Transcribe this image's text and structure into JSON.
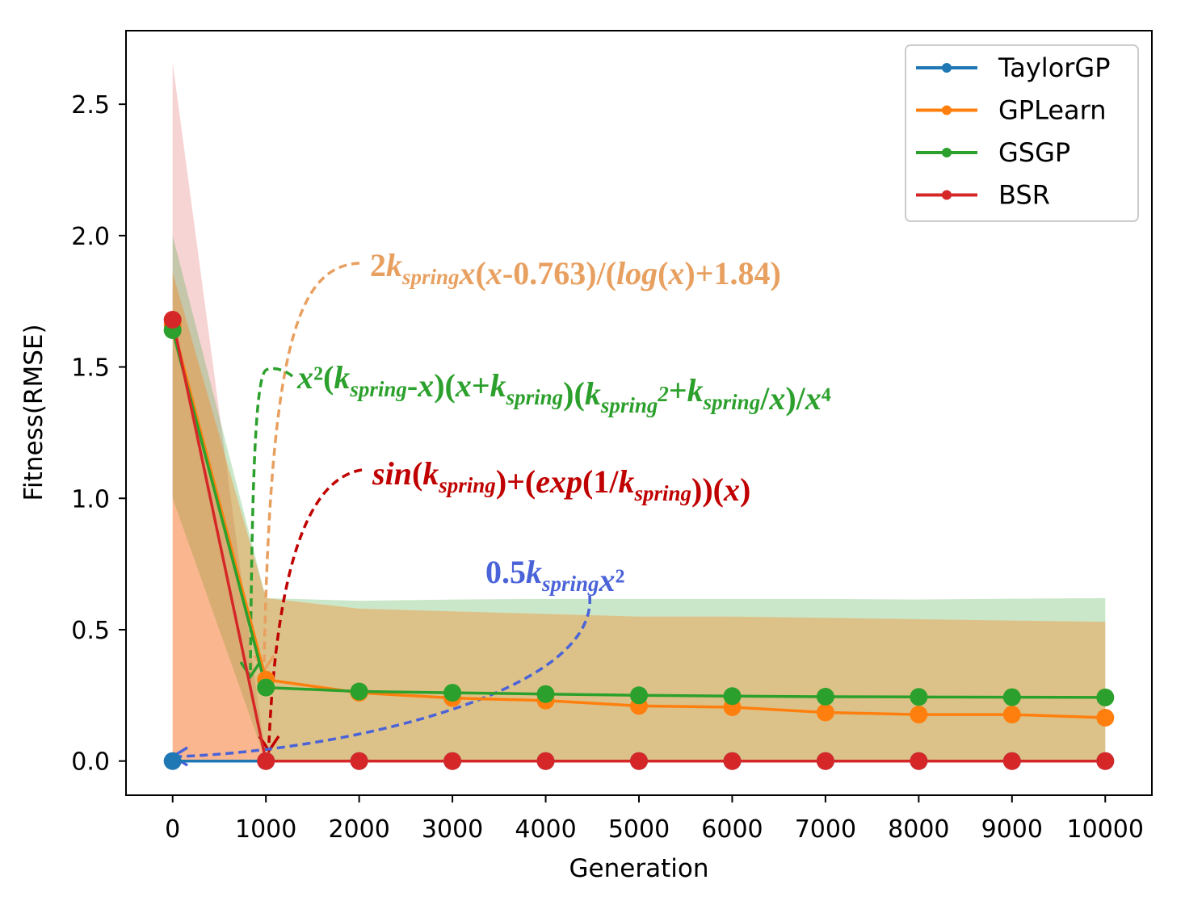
{
  "chart_data": {
    "type": "line",
    "xlabel": "Generation",
    "ylabel": "Fitness(RMSE)",
    "xlim": [
      -500,
      10500
    ],
    "ylim": [
      -0.13,
      2.78
    ],
    "x": [
      0,
      1000,
      2000,
      3000,
      4000,
      5000,
      6000,
      7000,
      8000,
      9000,
      10000
    ],
    "xticks": [
      0,
      1000,
      2000,
      3000,
      4000,
      5000,
      6000,
      7000,
      8000,
      9000,
      10000
    ],
    "xtick_labels": [
      "0",
      "1000",
      "2000",
      "3000",
      "4000",
      "5000",
      "6000",
      "7000",
      "8000",
      "9000",
      "10000"
    ],
    "yticks": [
      0.0,
      0.5,
      1.0,
      1.5,
      2.0,
      2.5
    ],
    "ytick_labels": [
      "0.0",
      "0.5",
      "1.0",
      "1.5",
      "2.0",
      "2.5"
    ],
    "legend_position": "top-right",
    "series": [
      {
        "name": "TaylorGP",
        "color": "#1f77b4",
        "values": [
          0,
          0,
          0,
          0,
          0,
          0,
          0,
          0,
          0,
          0,
          0
        ],
        "band_lower": null,
        "band_upper": null
      },
      {
        "name": "GPLearn",
        "color": "#ff7f0e",
        "values": [
          1.66,
          0.31,
          0.26,
          0.24,
          0.23,
          0.21,
          0.205,
          0.185,
          0.177,
          0.177,
          0.165
        ],
        "band_lower": [
          0.0,
          0.0,
          0.0,
          0.0,
          0.0,
          0.0,
          0.0,
          0.0,
          0.0,
          0.0,
          0.0
        ],
        "band_upper": [
          1.86,
          0.62,
          0.58,
          0.57,
          0.56,
          0.55,
          0.55,
          0.545,
          0.54,
          0.535,
          0.53
        ]
      },
      {
        "name": "GSGP",
        "color": "#2ca02c",
        "values": [
          1.64,
          0.28,
          0.265,
          0.26,
          0.255,
          0.25,
          0.247,
          0.245,
          0.244,
          0.243,
          0.242
        ],
        "band_lower": [
          1.0,
          0.0,
          0.0,
          0.0,
          0.0,
          0.0,
          0.0,
          0.0,
          0.0,
          0.0,
          0.0
        ],
        "band_upper": [
          2.0,
          0.62,
          0.61,
          0.615,
          0.617,
          0.617,
          0.617,
          0.617,
          0.615,
          0.618,
          0.62
        ]
      },
      {
        "name": "BSR",
        "color": "#d62728",
        "values": [
          1.68,
          0,
          0,
          0,
          0,
          0,
          0,
          0,
          0,
          0,
          0
        ],
        "band_lower": [
          0.0,
          0.0,
          0.0,
          0.0,
          0.0,
          0.0,
          0.0,
          0.0,
          0.0,
          0.0,
          0.0
        ],
        "band_upper": [
          2.66,
          0.0,
          0.0,
          0.0,
          0.0,
          0.0,
          0.0,
          0.0,
          0.0,
          0.0,
          0.0
        ]
      }
    ],
    "annotations": [
      {
        "series": "GPLearn",
        "color": "#e8a060",
        "parts": [
          [
            "b",
            "2"
          ],
          [
            "i",
            "k"
          ],
          [
            "sub",
            "spring"
          ],
          [
            "i",
            "x"
          ],
          [
            "b",
            "("
          ],
          [
            "i",
            "x"
          ],
          [
            "b",
            "-0.763)/("
          ],
          [
            "i",
            "log"
          ],
          [
            "b",
            "("
          ],
          [
            "i",
            "x"
          ],
          [
            "b",
            ")+1.84)"
          ]
        ]
      },
      {
        "series": "GSGP",
        "color": "#2ca02c",
        "parts": [
          [
            "i",
            "x"
          ],
          [
            "b",
            "²("
          ],
          [
            "i",
            "k"
          ],
          [
            "sub",
            "spring"
          ],
          [
            "b",
            "-"
          ],
          [
            "i",
            "x"
          ],
          [
            "b",
            ")("
          ],
          [
            "i",
            "x"
          ],
          [
            "b",
            "+"
          ],
          [
            "i",
            "k"
          ],
          [
            "sub",
            "spring"
          ],
          [
            "b",
            ")("
          ],
          [
            "i",
            "k"
          ],
          [
            "sub",
            "spring"
          ],
          [
            "sup",
            "2"
          ],
          [
            "b",
            "+"
          ],
          [
            "i",
            "k"
          ],
          [
            "sub",
            "spring"
          ],
          [
            "b",
            "/"
          ],
          [
            "i",
            "x"
          ],
          [
            "b",
            ")/"
          ],
          [
            "i",
            "x"
          ],
          [
            "b",
            "⁴"
          ]
        ]
      },
      {
        "series": "BSR",
        "color": "#c00000",
        "parts": [
          [
            "i",
            "sin"
          ],
          [
            "b",
            "("
          ],
          [
            "i",
            "k"
          ],
          [
            "sub",
            "spring"
          ],
          [
            "b",
            ")+("
          ],
          [
            "i",
            "exp"
          ],
          [
            "b",
            "(1/"
          ],
          [
            "i",
            "k"
          ],
          [
            "sub",
            "spring"
          ],
          [
            "b",
            "))("
          ],
          [
            "i",
            "x"
          ],
          [
            "b",
            ")"
          ]
        ]
      },
      {
        "series": "TaylorGP",
        "color": "#4a63d8",
        "parts": [
          [
            "b",
            "0.5"
          ],
          [
            "i",
            "k"
          ],
          [
            "sub",
            "spring"
          ],
          [
            "i",
            "x"
          ],
          [
            "b",
            "²"
          ]
        ]
      }
    ]
  }
}
